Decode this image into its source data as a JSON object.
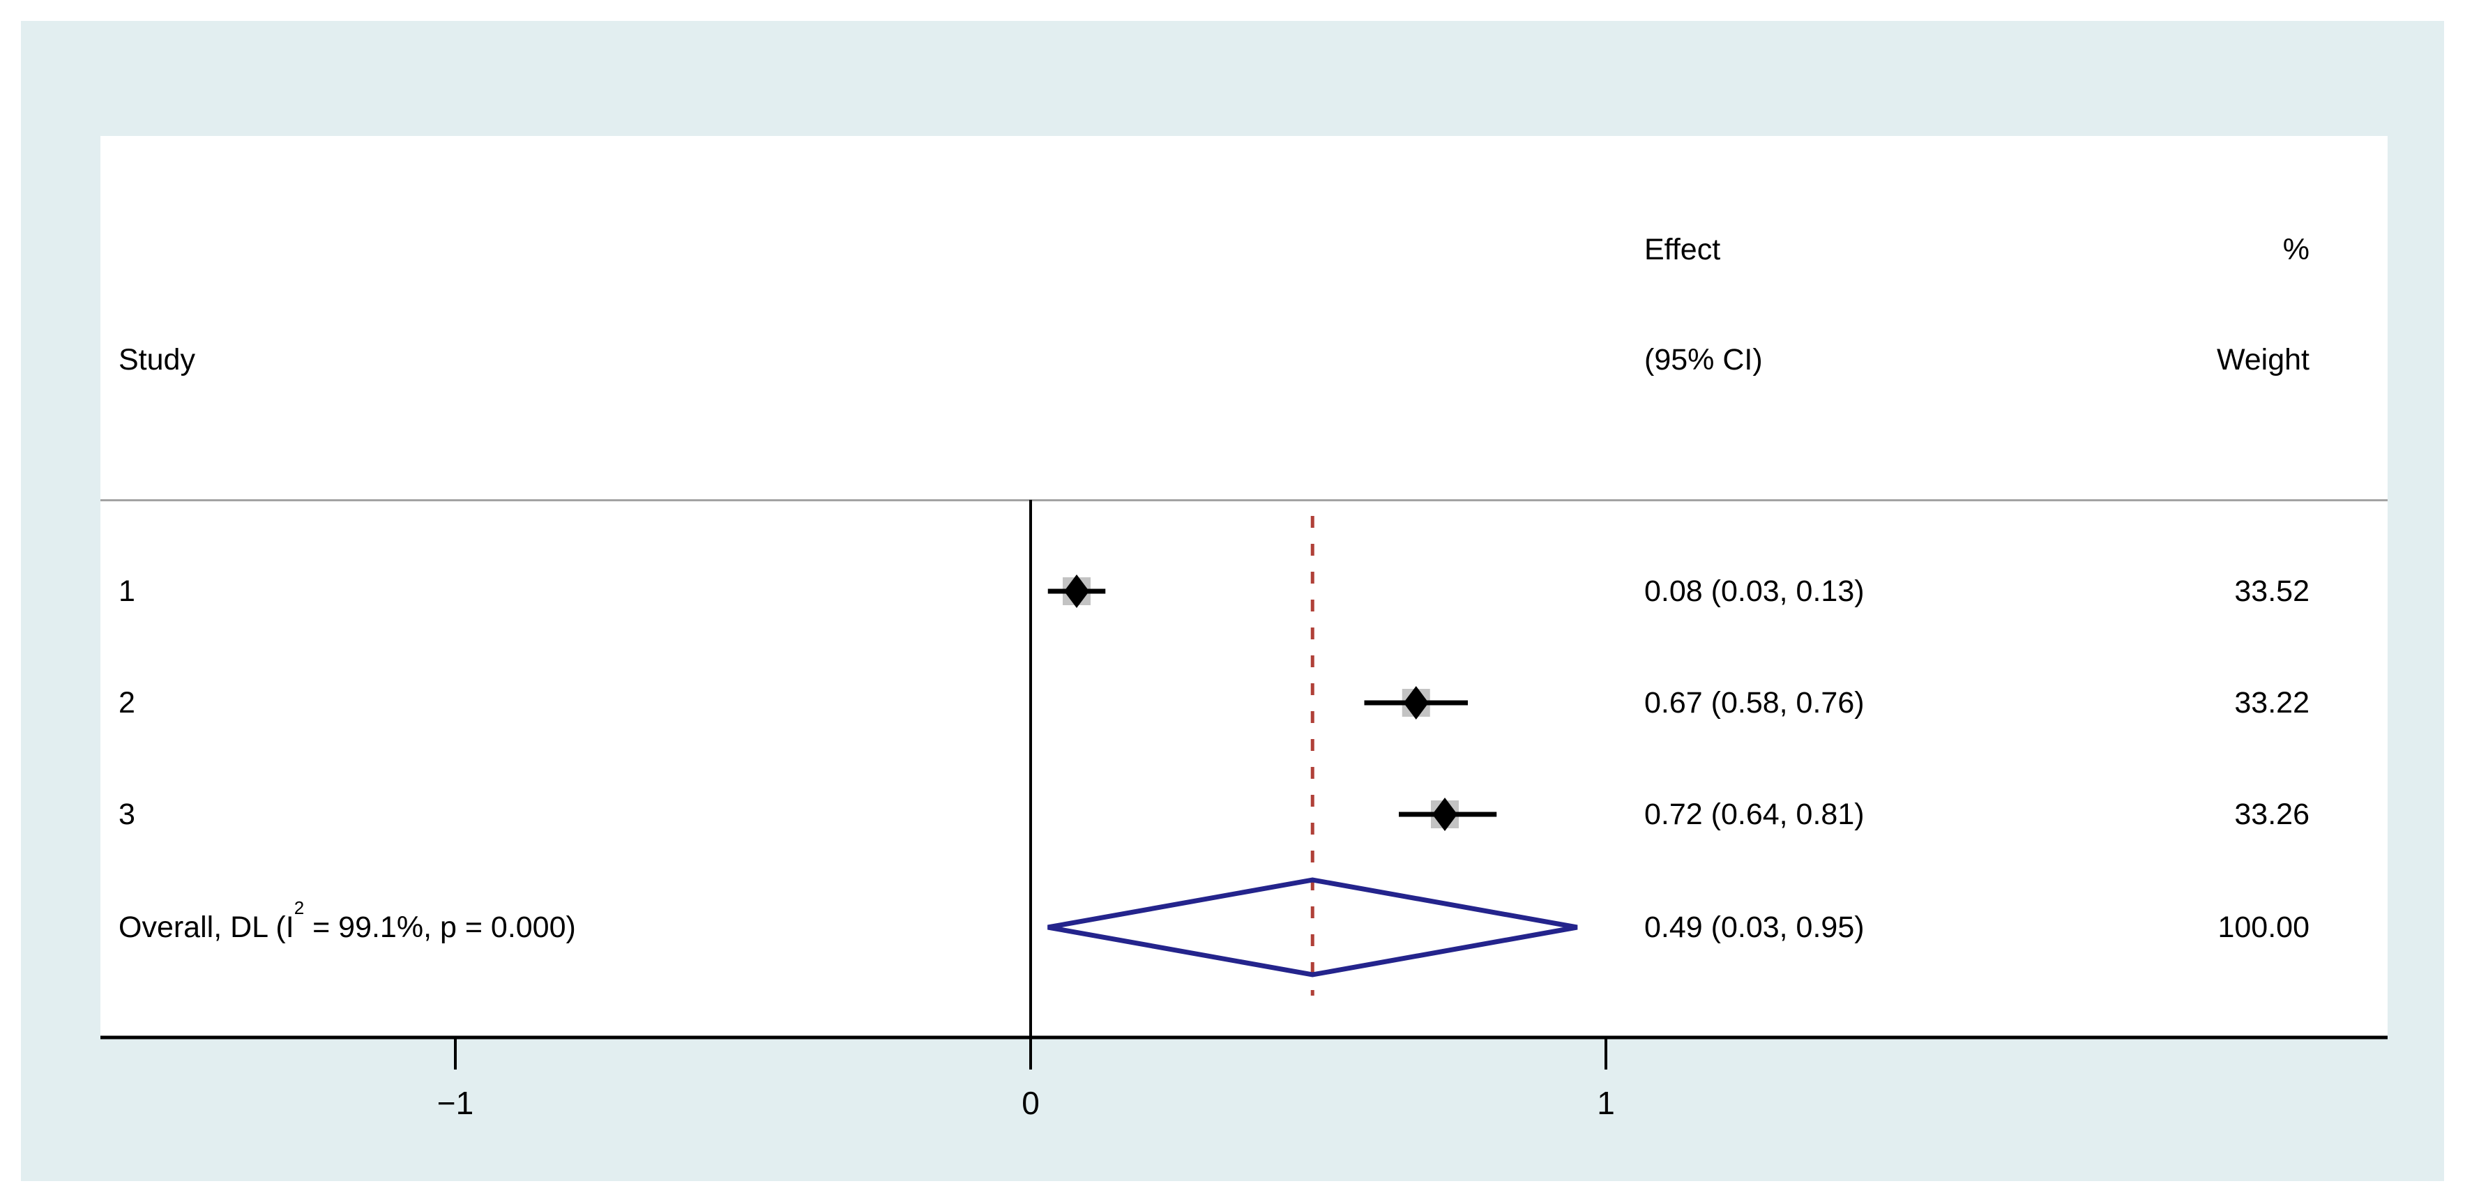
{
  "header": {
    "study_col": "Study",
    "effect_line1": "Effect",
    "effect_line2": "(95% CI)",
    "percent_line": "%",
    "weight_line": "Weight"
  },
  "chart_data": {
    "type": "forest",
    "title": "",
    "xlabel": "",
    "xlim_drawn": [
      -1.62,
      2.36
    ],
    "grid": false,
    "studies": [
      {
        "label": "1",
        "effect": 0.08,
        "ci_low": 0.03,
        "ci_high": 0.13,
        "weight": 33.52,
        "effect_ci_label": "0.08 (0.03, 0.13)",
        "weight_label": "33.52"
      },
      {
        "label": "2",
        "effect": 0.67,
        "ci_low": 0.58,
        "ci_high": 0.76,
        "weight": 33.22,
        "effect_ci_label": "0.67 (0.58, 0.76)",
        "weight_label": "33.22"
      },
      {
        "label": "3",
        "effect": 0.72,
        "ci_low": 0.64,
        "ci_high": 0.81,
        "weight": 33.26,
        "effect_ci_label": "0.72 (0.64, 0.81)",
        "weight_label": "33.26"
      }
    ],
    "overall": {
      "label_prefix": "Overall, DL (I",
      "label_sup": "2",
      "label_suffix": " = 99.1%, p = 0.000)",
      "method": "DL",
      "i_squared": "99.1%",
      "p_value": "0.000",
      "effect": 0.49,
      "ci_low": 0.03,
      "ci_high": 0.95,
      "weight": 100.0,
      "effect_ci_label": "0.49 (0.03, 0.95)",
      "weight_label": "100.00"
    },
    "x_axis": {
      "ticks": [
        {
          "value": -1,
          "label": "−1"
        },
        {
          "value": 0,
          "label": "0"
        },
        {
          "value": 1,
          "label": "1"
        }
      ],
      "zero_line": 0,
      "ref_line": 0.49
    },
    "colors": {
      "figure_background": "#e2eef0",
      "panel_background": "#ffffff",
      "overall_diamond": "#24248c",
      "ref_line": "#b04038",
      "weight_box": "#c3c3c3",
      "marker": "#000000",
      "separator": "#a3a3a3"
    }
  }
}
